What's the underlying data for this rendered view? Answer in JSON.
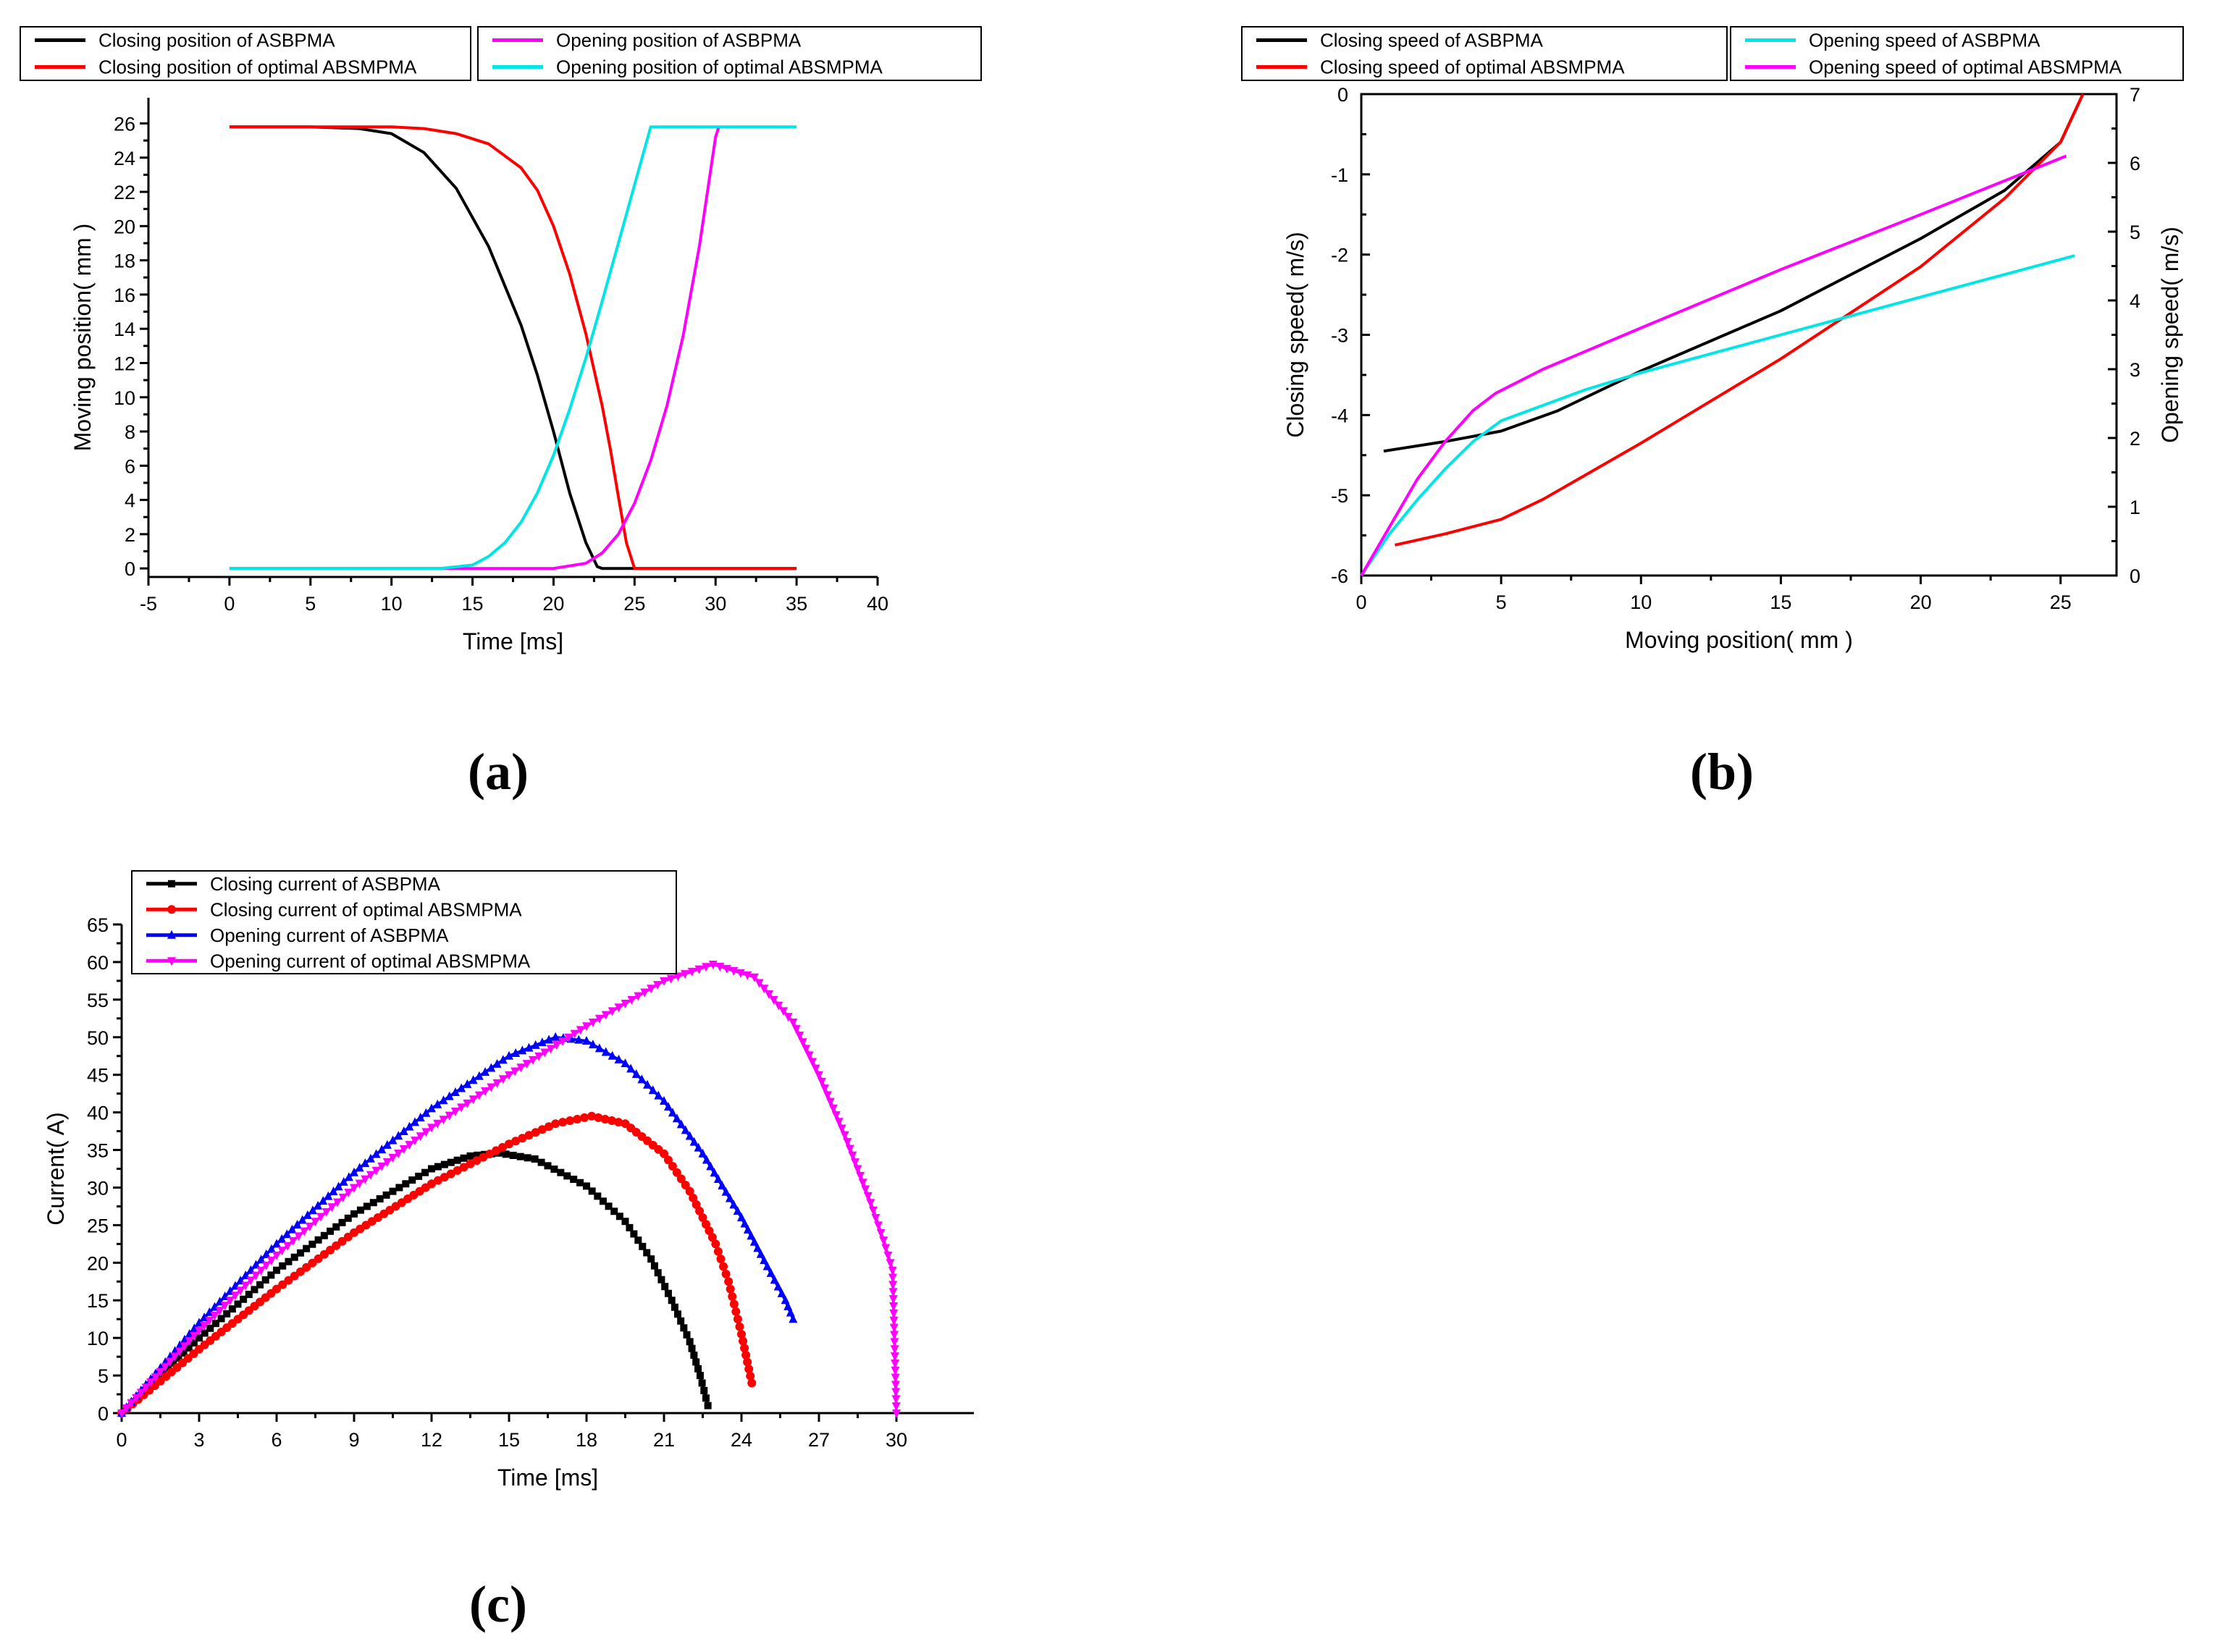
{
  "chart_data": [
    {
      "type": "line",
      "panel_label": "(a)",
      "xlabel": "Time [ms]",
      "ylabel": "Moving position( mm )",
      "xlim": [
        -5,
        40
      ],
      "ylim": [
        -0.5,
        27.5
      ],
      "xticks": [
        -5,
        0,
        5,
        10,
        15,
        20,
        25,
        30,
        35,
        40
      ],
      "yticks": [
        0,
        2,
        4,
        6,
        8,
        10,
        12,
        14,
        16,
        18,
        20,
        22,
        24,
        26
      ],
      "legend_groups": [
        [
          0,
          1
        ],
        [
          2,
          3
        ]
      ],
      "series": [
        {
          "name": "Closing position of ASBPMA",
          "color": "#000000",
          "x": [
            0,
            5,
            8,
            10,
            12,
            14,
            16,
            18,
            19,
            20,
            21,
            22,
            22.7,
            23,
            35
          ],
          "y": [
            25.8,
            25.8,
            25.7,
            25.4,
            24.3,
            22.2,
            18.8,
            14.2,
            11.3,
            8.0,
            4.4,
            1.5,
            0.1,
            0,
            0
          ]
        },
        {
          "name": "Closing position of optimal ABSMPMA",
          "color": "#ff0000",
          "x": [
            0,
            10,
            12,
            14,
            16,
            18,
            19,
            20,
            21,
            22,
            23,
            23.5,
            24,
            24.5,
            25,
            35
          ],
          "y": [
            25.8,
            25.8,
            25.7,
            25.4,
            24.8,
            23.4,
            22.1,
            20.0,
            17.2,
            13.7,
            9.5,
            7.0,
            4.2,
            1.5,
            0,
            0
          ]
        },
        {
          "name": "Opening position of ASBPMA",
          "color": "#ff00ff",
          "x": [
            0,
            20,
            22,
            23,
            24,
            25,
            26,
            27,
            28,
            29,
            30,
            30.2
          ],
          "y": [
            0,
            0,
            0.3,
            0.9,
            2.0,
            3.8,
            6.3,
            9.5,
            13.6,
            18.8,
            25.2,
            25.8
          ]
        },
        {
          "name": "Opening position of optimal ABSMPMA",
          "color": "#00e5e5",
          "x": [
            0,
            13,
            15,
            16,
            17,
            18,
            19,
            20,
            21,
            22,
            23,
            24,
            25,
            26,
            35
          ],
          "y": [
            0,
            0,
            0.2,
            0.7,
            1.5,
            2.7,
            4.4,
            6.6,
            9.3,
            12.3,
            15.6,
            19.0,
            22.4,
            25.8,
            25.8
          ]
        }
      ]
    },
    {
      "type": "line",
      "panel_label": "(b)",
      "xlabel": "Moving position( mm )",
      "ylabel": "Closing speed( m/s)",
      "y2label": "Opening speed( m/s)",
      "xlim": [
        0,
        27
      ],
      "ylim": [
        -6,
        0
      ],
      "y2lim": [
        0,
        7
      ],
      "xticks": [
        0,
        5,
        10,
        15,
        20,
        25
      ],
      "yticks": [
        -6,
        -5,
        -4,
        -3,
        -2,
        -1,
        0
      ],
      "y2ticks": [
        0,
        1,
        2,
        3,
        4,
        5,
        6,
        7
      ],
      "legend_groups": [
        [
          0,
          1
        ],
        [
          2,
          3
        ]
      ],
      "series": [
        {
          "name": "Closing speed of ASBPMA",
          "color": "#000000",
          "axis": "left",
          "x": [
            0.8,
            3,
            5,
            7,
            10,
            15,
            20,
            23,
            25,
            25.8
          ],
          "y": [
            -4.45,
            -4.33,
            -4.2,
            -3.95,
            -3.45,
            -2.7,
            -1.8,
            -1.2,
            -0.6,
            0
          ]
        },
        {
          "name": "Closing speed of optimal ABSMPMA",
          "color": "#ff0000",
          "axis": "left",
          "x": [
            1.2,
            3,
            5,
            6.5,
            8,
            10,
            15,
            20,
            23,
            25,
            25.8
          ],
          "y": [
            -5.62,
            -5.48,
            -5.3,
            -5.05,
            -4.75,
            -4.35,
            -3.3,
            -2.15,
            -1.3,
            -0.6,
            0
          ]
        },
        {
          "name": "Opening speed of ASBPMA",
          "color": "#00e5e5",
          "axis": "right",
          "x": [
            0,
            1,
            2,
            3,
            4,
            5,
            6,
            8,
            10,
            15,
            20,
            25.5
          ],
          "y": [
            0,
            0.6,
            1.1,
            1.55,
            1.95,
            2.25,
            2.4,
            2.7,
            2.95,
            3.5,
            4.05,
            4.65
          ]
        },
        {
          "name": "Opening speed of optimal ABSMPMA",
          "color": "#ff00ff",
          "axis": "right",
          "x": [
            0,
            1,
            2,
            3,
            4,
            4.8,
            6.5,
            10,
            15,
            20,
            25.2
          ],
          "y": [
            0,
            0.7,
            1.4,
            1.95,
            2.4,
            2.65,
            3.0,
            3.6,
            4.45,
            5.25,
            6.1
          ]
        }
      ]
    },
    {
      "type": "line",
      "panel_label": "(c)",
      "xlabel": "Time [ms]",
      "ylabel": "Current( A)",
      "xlim": [
        0,
        33
      ],
      "ylim": [
        0,
        65
      ],
      "xticks": [
        0,
        3,
        6,
        9,
        12,
        15,
        18,
        21,
        24,
        27,
        30
      ],
      "yticks": [
        0,
        5,
        10,
        15,
        20,
        25,
        30,
        35,
        40,
        45,
        50,
        55,
        60,
        65
      ],
      "series": [
        {
          "name": "Closing current of  ASBPMA",
          "color": "#000000",
          "marker": "square",
          "x": [
            0,
            3,
            6,
            9,
            12,
            13.5,
            14.6,
            16,
            18,
            19.5,
            20.5,
            21.3,
            22,
            22.4,
            22.7
          ],
          "y": [
            0,
            10,
            19,
            26.5,
            32.5,
            34.2,
            34.6,
            33.8,
            30.2,
            25.5,
            20.5,
            15,
            9.5,
            5,
            1
          ]
        },
        {
          "name": "Closing current of optimal ABSMPMA",
          "color": "#ff0000",
          "marker": "circle",
          "x": [
            0,
            3,
            6,
            9,
            12,
            15,
            16.8,
            18.2,
            19.5,
            21,
            22,
            23,
            23.5,
            24,
            24.4
          ],
          "y": [
            0,
            8.5,
            16.5,
            24,
            30.5,
            35.8,
            38.5,
            39.5,
            38.5,
            34.5,
            29.5,
            22.5,
            17.5,
            10.5,
            4
          ]
        },
        {
          "name": "Opening current of  ASBPMA",
          "color": "#0000ff",
          "marker": "triangle-up",
          "x": [
            0,
            3,
            6,
            9,
            12,
            15,
            16.8,
            18,
            19.5,
            21,
            22.5,
            24,
            25,
            25.7,
            26
          ],
          "y": [
            0,
            12,
            22.5,
            32,
            40.5,
            47.5,
            50,
            49.5,
            46.5,
            41.5,
            34.5,
            26,
            19.5,
            15,
            12.5
          ]
        },
        {
          "name": "Opening current of optimal ABSMPMA",
          "color": "#ff00ff",
          "marker": "triangle-down",
          "x": [
            0,
            3,
            6,
            9,
            12,
            15,
            18,
            21,
            22.9,
            24.5,
            26,
            27,
            28,
            29,
            29.5,
            29.85,
            30
          ],
          "y": [
            0,
            11,
            21,
            30,
            38,
            45,
            51.5,
            57.5,
            59.7,
            58,
            52,
            45,
            37,
            28,
            23,
            19,
            0
          ]
        }
      ]
    }
  ]
}
